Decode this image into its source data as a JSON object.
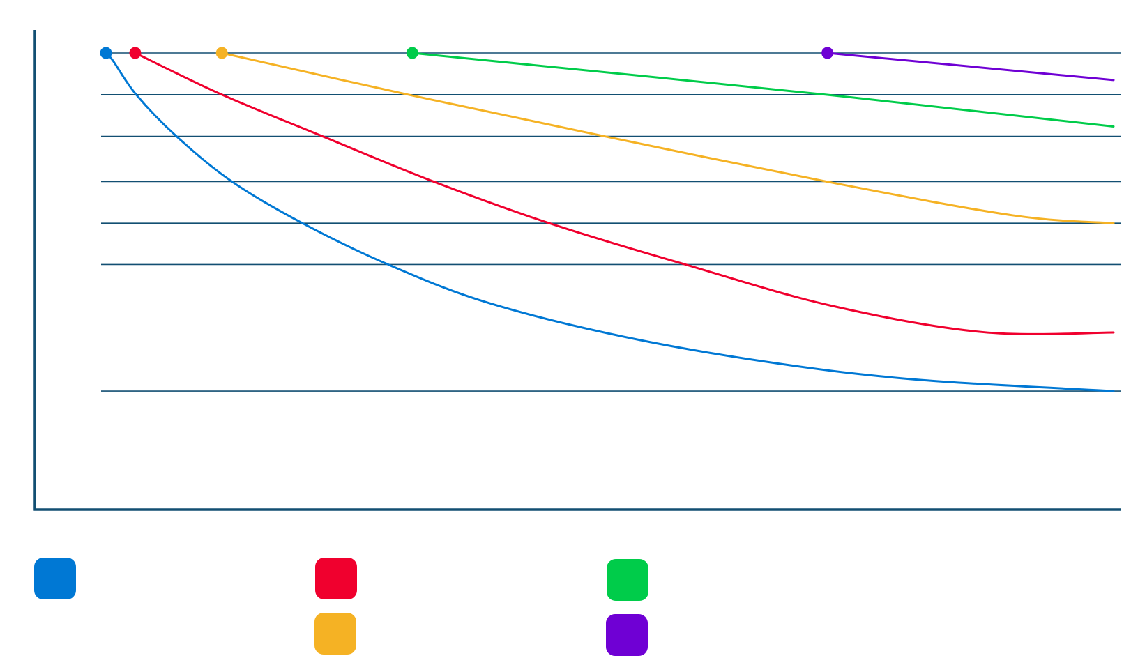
{
  "chart_data": {
    "type": "line",
    "title": "",
    "xlabel": "",
    "ylabel": "",
    "grid": true,
    "legend_placement": "bottom-left",
    "colors": {
      "axis": "#124f72",
      "grid": "#124f72"
    },
    "xlim": [
      0,
      100
    ],
    "ylim": [
      0,
      100
    ],
    "gridlines_y": [
      100,
      89.4,
      78.8,
      67.3,
      56.7,
      46.2,
      14.0
    ],
    "series": [
      {
        "color": "#0078d4",
        "points": [
          [
            0,
            100
          ],
          [
            0.7,
            98
          ],
          [
            3,
            89.4
          ],
          [
            7,
            78.8
          ],
          [
            12.5,
            67.3
          ],
          [
            19.5,
            56.7
          ],
          [
            28,
            46.2
          ],
          [
            38,
            36.4
          ],
          [
            52,
            27.5
          ],
          [
            67,
            20.9
          ],
          [
            81,
            16.8
          ],
          [
            100,
            14.0
          ]
        ]
      },
      {
        "color": "#f0002e",
        "points": [
          [
            2.9,
            100
          ],
          [
            11.5,
            89.4
          ],
          [
            21.5,
            78.8
          ],
          [
            32.5,
            67.3
          ],
          [
            44,
            56.7
          ],
          [
            57.5,
            46.2
          ],
          [
            72,
            35.7
          ],
          [
            87,
            29.0
          ],
          [
            100,
            28.9
          ]
        ]
      },
      {
        "color": "#f5b224",
        "points": [
          [
            11.5,
            100
          ],
          [
            30,
            89.4
          ],
          [
            49.5,
            78.8
          ],
          [
            71.5,
            67.3
          ],
          [
            90,
            58.7
          ],
          [
            100,
            56.7
          ]
        ]
      },
      {
        "color": "#00cc4a",
        "points": [
          [
            30.4,
            100
          ],
          [
            71.4,
            89.4
          ],
          [
            100,
            81.3
          ]
        ]
      },
      {
        "color": "#6f00d4",
        "points": [
          [
            71.6,
            100
          ],
          [
            100,
            93.1
          ]
        ]
      }
    ]
  }
}
